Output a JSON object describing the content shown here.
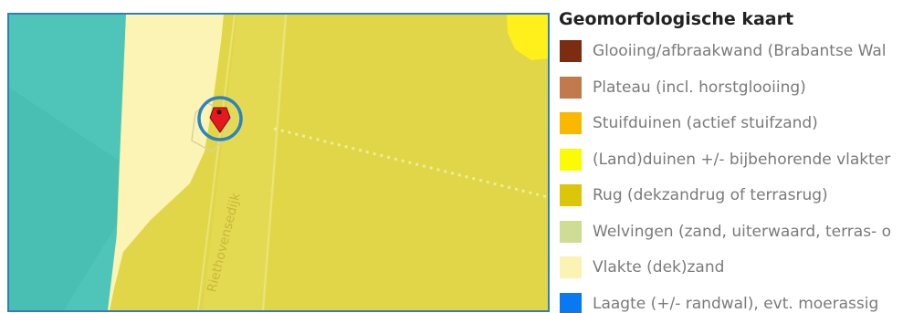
{
  "map": {
    "street_label": "Riethovensedijk",
    "colors": {
      "laagte_teal": "#4fc4b8",
      "vlakte": "#fbf4b4",
      "rug": "#e0d648",
      "duinen": "#ffef1a",
      "marker_ring": "#2c83c3",
      "marker_pin": "#e3191f"
    },
    "icons": {
      "location": "location-marker-icon"
    }
  },
  "legend": {
    "title": "Geomorfologische kaart",
    "items": [
      {
        "label": "Glooiing/afbraakwand (Brabantse Wal",
        "color": "#7b2c11"
      },
      {
        "label": "Plateau (incl. horstglooiing)",
        "color": "#c27a4c"
      },
      {
        "label": "Stuifduinen (actief stuifzand)",
        "color": "#fbb800"
      },
      {
        "label": "(Land)duinen +/- bijbehorende vlakter",
        "color": "#fbfb05"
      },
      {
        "label": "Rug (dekzandrug of terrasrug)",
        "color": "#dbc609"
      },
      {
        "label": "Welvingen (zand, uiterwaard, terras- o",
        "color": "#cfdc93"
      },
      {
        "label": "Vlakte (dek)zand",
        "color": "#fbf3b3"
      },
      {
        "label": "Laagte (+/- randwal), evt. moerassig",
        "color": "#0a78f0"
      }
    ]
  }
}
